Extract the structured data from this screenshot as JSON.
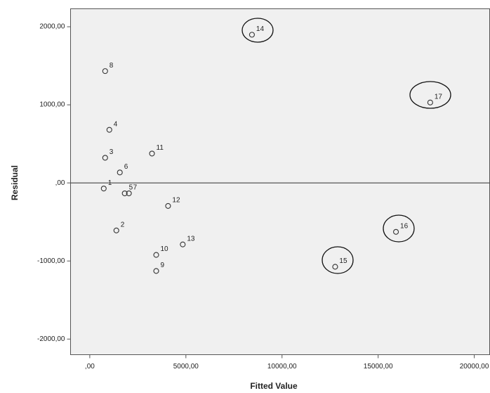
{
  "chart_data": {
    "type": "scatter",
    "x_label": "Fitted Value",
    "y_label": "Residual",
    "x": [
      727,
      1382,
      800,
      1018,
      1818,
      1564,
      2036,
      800,
      3455,
      3455,
      3236,
      4073,
      4836,
      8436,
      12764,
      15927,
      17709
    ],
    "values": [
      -72,
      -609,
      322,
      680,
      -134,
      134,
      -134,
      1432,
      -1128,
      -922,
      376,
      -295,
      -788,
      1898,
      -1074,
      -627,
      1030
    ],
    "point_labels": [
      "1",
      "2",
      "3",
      "4",
      "5",
      "6",
      "7",
      "8",
      "9",
      "10",
      "11",
      "12",
      "13",
      "14",
      "15",
      "16",
      "17"
    ],
    "color": "#333333",
    "xlim": [
      -1000,
      20800
    ],
    "ylim": [
      -2200,
      2230
    ],
    "xticks": [
      {
        "value": 0,
        "label": ",00"
      },
      {
        "value": 5000,
        "label": "5000,00"
      },
      {
        "value": 10000,
        "label": "10000,00"
      },
      {
        "value": 15000,
        "label": "15000,00"
      },
      {
        "value": 20000,
        "label": "20000,00"
      }
    ],
    "yticks": [
      {
        "value": 2000,
        "label": "2000,00"
      },
      {
        "value": 1000,
        "label": "1000,00"
      },
      {
        "value": 0,
        "label": ",00"
      },
      {
        "value": -1000,
        "label": "-1000,00"
      },
      {
        "value": -2000,
        "label": "-2000,00"
      }
    ],
    "reference_line": 0
  }
}
